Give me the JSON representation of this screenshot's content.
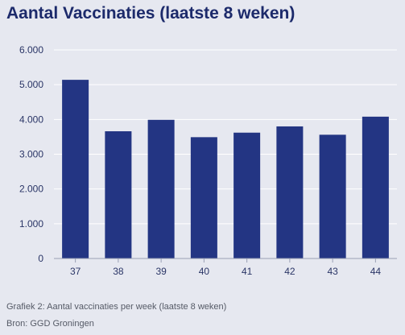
{
  "title": "Aantal Vaccinaties (laatste 8 weken)",
  "caption": "Grafiek 2: Aantal vaccinaties per week (laatste 8 weken)",
  "source": "Bron: GGD Groningen",
  "colors": {
    "bar": "#233583",
    "grid": "#ffffff",
    "axis_text": "#2a3566",
    "background": "#e6e8f0"
  },
  "chart_data": {
    "type": "bar",
    "categories": [
      "37",
      "38",
      "39",
      "40",
      "41",
      "42",
      "43",
      "44"
    ],
    "values": [
      5140,
      3660,
      3990,
      3490,
      3620,
      3800,
      3560,
      4080
    ],
    "ylim": [
      0,
      6000
    ],
    "yticks": [
      0,
      1000,
      2000,
      3000,
      4000,
      5000,
      6000
    ],
    "ytick_labels": [
      "0",
      "1.000",
      "2.000",
      "3.000",
      "4.000",
      "5.000",
      "6.000"
    ],
    "grid": true,
    "legend": "none"
  }
}
